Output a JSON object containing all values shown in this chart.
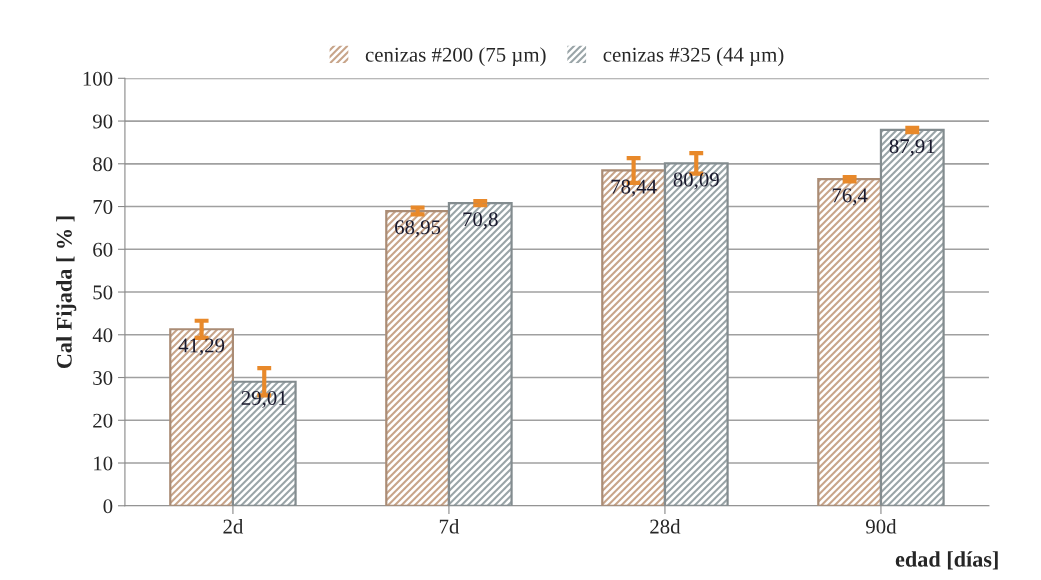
{
  "chart_data": {
    "type": "bar",
    "xlabel": "edad [días]",
    "ylabel": "Cal Fijada [ % ]",
    "categories": [
      "2d",
      "7d",
      "28d",
      "90d"
    ],
    "series": [
      {
        "name": "cenizas #200 (75 µm)",
        "color": "#c8a58a",
        "values": [
          41.29,
          68.95,
          78.44,
          76.4
        ],
        "errors": [
          2,
          0.8,
          2.9,
          0.5
        ],
        "value_labels": [
          "41,29",
          "68,95",
          "78,44",
          "76,4"
        ]
      },
      {
        "name": "cenizas #325 (44 µm)",
        "color": "#9aa5a8",
        "values": [
          29.01,
          70.8,
          80.09,
          87.91
        ],
        "errors": [
          3.2,
          0.5,
          2.4,
          0.5
        ],
        "value_labels": [
          "29,01",
          "70,8",
          "80,09",
          "87,91"
        ]
      }
    ],
    "ylim": [
      0,
      100
    ],
    "yticks": [
      0,
      10,
      20,
      30,
      40,
      50,
      60,
      70,
      80,
      90,
      100
    ],
    "grid": "y",
    "legend": "top"
  }
}
